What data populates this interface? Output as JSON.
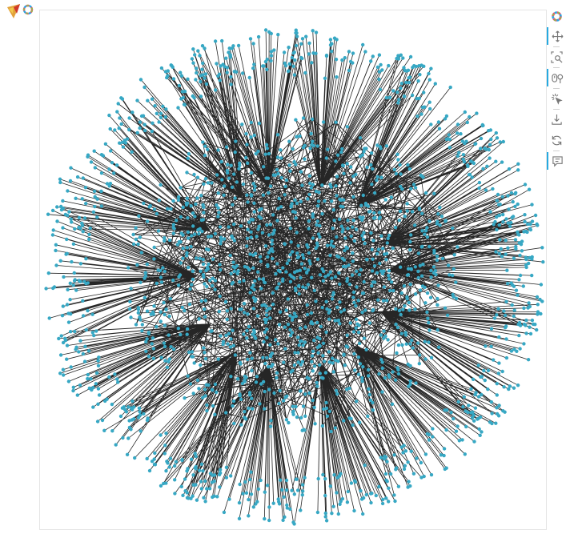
{
  "app": {
    "name": "Bokeh"
  },
  "graph": {
    "node_color": "#37a8c4",
    "edge_color": "#000000",
    "background": "#ffffff",
    "border_color": "#e5e5e5",
    "hub_count": 14,
    "inner_node_count": 1100,
    "leaf_count": 900,
    "cross_edge_count": 700
  },
  "toolbar": {
    "logo_icon": "bokeh-logo-icon",
    "tools": [
      {
        "name": "pan-tool-icon",
        "active": true
      },
      {
        "name": "box-zoom-tool-icon",
        "active": false
      },
      {
        "name": "wheel-zoom-tool-icon",
        "active": true
      },
      {
        "name": "tap-tool-icon",
        "active": false
      },
      {
        "name": "save-tool-icon",
        "active": false
      },
      {
        "name": "reset-tool-icon",
        "active": false
      },
      {
        "name": "hover-tool-icon",
        "active": true
      }
    ]
  }
}
